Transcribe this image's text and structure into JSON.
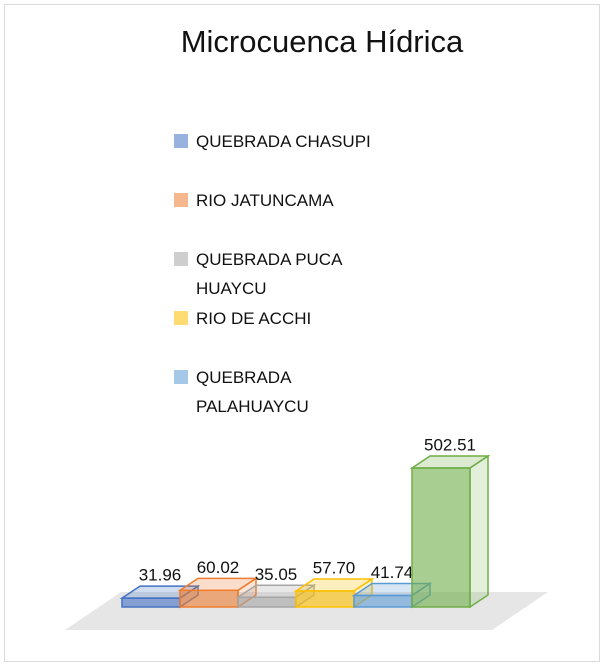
{
  "chart_data": {
    "type": "bar3d",
    "title": "Microcuenca Hídrica",
    "categories": [
      "QUEBRADA CHASUPI",
      "RIO JATUNCAMA",
      "QUEBRADA PUCA HUAYCU",
      "RIO DE ACCHI",
      "QUEBRADA PALAHUAYCU",
      null
    ],
    "values": [
      31.96,
      60.02,
      35.05,
      57.7,
      41.74,
      502.51
    ],
    "value_labels": [
      "31.96",
      "60.02",
      "35.05",
      "57.70",
      "41.74",
      "502.51"
    ],
    "colors": [
      "#4472c4",
      "#ed7d31",
      "#a5a5a5",
      "#ffc000",
      "#5b9bd5",
      "#70ad47"
    ]
  }
}
